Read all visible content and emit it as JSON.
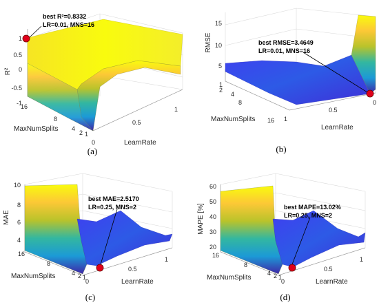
{
  "chart_data": [
    {
      "type": "surface",
      "panel": "(a)",
      "zlabel": "R²",
      "xlabel": "LearnRate",
      "ylabel": "MaxNumSplits",
      "z_ticks": [
        "1",
        "0.5",
        "0",
        "-0.5",
        "-1"
      ],
      "x_ticks": [
        "0",
        "0.5",
        "1"
      ],
      "y_ticks": [
        "16",
        "8",
        "4",
        "2",
        "1"
      ],
      "annotation": {
        "line1": "best R²=0.8332",
        "line2": "LR=0.01, MNS=16"
      },
      "best": {
        "LR": 0.01,
        "MNS": 16,
        "value": 0.8332
      }
    },
    {
      "type": "surface",
      "panel": "(b)",
      "zlabel": "RMSE",
      "xlabel": "LearnRate",
      "ylabel": "MaxNumSplits",
      "z_ticks": [
        "15",
        "10",
        "5"
      ],
      "x_ticks": [
        "1",
        "0.5",
        "0"
      ],
      "y_ticks": [
        "1",
        "2",
        "4",
        "8",
        "16"
      ],
      "annotation": {
        "line1": "best RMSE=3.4649",
        "line2": "LR=0.01, MNS=16"
      },
      "best": {
        "LR": 0.01,
        "MNS": 16,
        "value": 3.4649
      }
    },
    {
      "type": "surface",
      "panel": "(c)",
      "zlabel": "MAE",
      "xlabel": "LearnRate",
      "ylabel": "MaxNumSplits",
      "z_ticks": [
        "10",
        "8",
        "6",
        "4"
      ],
      "x_ticks": [
        "0",
        "0.5",
        "1"
      ],
      "y_ticks": [
        "16",
        "8",
        "4",
        "2",
        "1"
      ],
      "annotation": {
        "line1": "best MAE=2.5170",
        "line2": "LR=0.25, MNS=2"
      },
      "best": {
        "LR": 0.25,
        "MNS": 2,
        "value": 2.517
      }
    },
    {
      "type": "surface",
      "panel": "(d)",
      "zlabel": "MAPE [%]",
      "xlabel": "LearnRate",
      "ylabel": "MaxNumSplits",
      "z_ticks": [
        "60",
        "50",
        "40",
        "30",
        "20"
      ],
      "x_ticks": [
        "0",
        "0.5",
        "1"
      ],
      "y_ticks": [
        "16",
        "8",
        "4",
        "2",
        "1"
      ],
      "annotation": {
        "line1": "best MAPE=13.02%",
        "line2": "LR=0.25, MNS=2"
      },
      "best": {
        "LR": 0.25,
        "MNS": 2,
        "value": 13.02
      }
    }
  ],
  "colors": {
    "surface_high": "#f9fb0e",
    "surface_mid": "#24b6a5",
    "surface_low": "#3e26a8",
    "surface_blue": "#3b4fe0",
    "marker": "#e0001b"
  }
}
